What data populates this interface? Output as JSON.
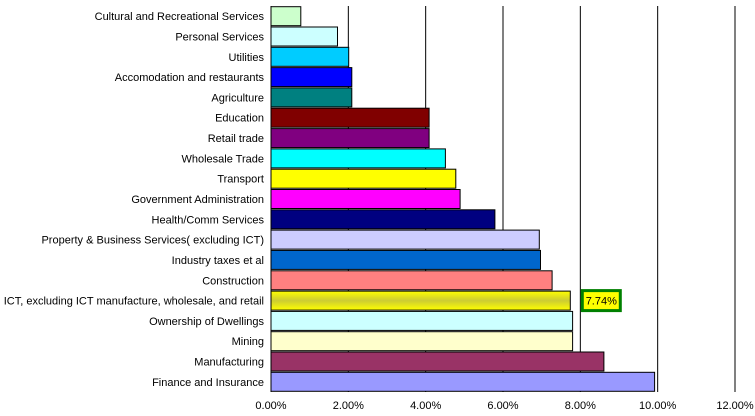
{
  "chart_data": {
    "type": "bar",
    "orientation": "horizontal",
    "title": "",
    "xlabel": "",
    "ylabel": "",
    "xlim": [
      0,
      0.12
    ],
    "x_ticks": [
      "0.00%",
      "2.00%",
      "4.00%",
      "6.00%",
      "8.00%",
      "10.00%",
      "12.00%"
    ],
    "grid": "vertical",
    "categories": [
      "Cultural and Recreational Services",
      "Personal Services",
      "Utilities",
      "Accomodation and restaurants",
      "Agriculture",
      "Education",
      "Retail trade",
      "Wholesale Trade",
      "Transport",
      "Government Administration",
      "Health/Comm  Services",
      "Property & Business Services( excluding ICT)",
      "Industry taxes et al",
      "Construction",
      "ICT, excluding ICT manufacture, wholesale, and retail",
      "Ownership of Dwellings",
      "Mining",
      "Manufacturing",
      "Finance and Insurance"
    ],
    "values": [
      0.0077,
      0.0172,
      0.0201,
      0.0209,
      0.0209,
      0.0409,
      0.0409,
      0.0451,
      0.0478,
      0.0489,
      0.0579,
      0.0694,
      0.0697,
      0.0727,
      0.0774,
      0.078,
      0.078,
      0.0861,
      0.0992
    ],
    "colors": [
      "#ccffcc",
      "#ccffff",
      "#00ccff",
      "#0000ff",
      "#008080",
      "#800000",
      "#800080",
      "#00ffff",
      "#ffff00",
      "#ff00ff",
      "#000080",
      "#ccccff",
      "#0066cc",
      "#ff8080",
      "#ffff00",
      "#ccffff",
      "#ffffcc",
      "#993366",
      "#9999ff"
    ],
    "highlight": {
      "category": "ICT, excluding ICT manufacture, wholesale, and retail",
      "label": "7.74%",
      "border_color": "#008000",
      "fill_color": "#ffff00"
    }
  }
}
